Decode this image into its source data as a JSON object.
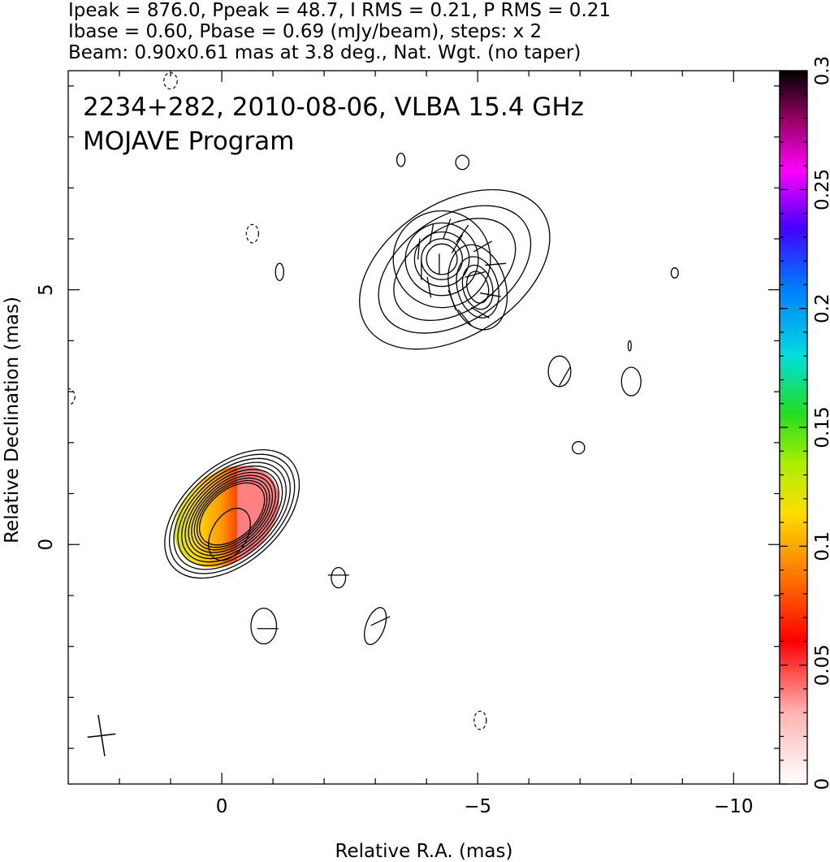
{
  "header": {
    "line1": "Ipeak = 876.0, Ppeak = 48.7, I RMS = 0.21, P RMS = 0.21",
    "line2": "Ibase = 0.60, Pbase = 0.69 (mJy/beam), steps: x 2",
    "line3": "Beam: 0.90x0.61 mas at 3.8 deg., Nat. Wgt. (no taper)"
  },
  "chart_data": {
    "type": "heatmap",
    "title": "2234+282, 2010-08-06, VLBA 15.4 GHz",
    "subtitle": "MOJAVE Program",
    "xlabel": "Relative R.A. (mas)",
    "ylabel": "Relative Declination (mas)",
    "xlim": [
      3.0,
      -10.9
    ],
    "ylim": [
      -4.7,
      9.3
    ],
    "x_ticks": [
      {
        "value": 0,
        "label": "0"
      },
      {
        "value": -5,
        "label": "−5"
      },
      {
        "value": -10,
        "label": "−10"
      }
    ],
    "y_ticks": [
      {
        "value": 0,
        "label": "0"
      },
      {
        "value": 5,
        "label": "5"
      }
    ],
    "colorbar": {
      "range": [
        0,
        0.3
      ],
      "ticks": [
        {
          "value": 0,
          "label": "0"
        },
        {
          "value": 0.05,
          "label": "0.05"
        },
        {
          "value": 0.1,
          "label": "0.1"
        },
        {
          "value": 0.15,
          "label": "0.15"
        },
        {
          "value": 0.2,
          "label": "0.2"
        },
        {
          "value": 0.25,
          "label": "0.25"
        },
        {
          "value": 0.3,
          "label": "0.3"
        }
      ]
    },
    "contours": [
      {
        "cx": -0.2,
        "cy": 0.6,
        "base_rx": 1.55,
        "base_ry": 0.95,
        "angle": -42,
        "levels": 11,
        "shrink": 0.93
      },
      {
        "cx": -0.15,
        "cy": 0.2,
        "base_rx": 0.55,
        "base_ry": 0.35,
        "angle": -60,
        "levels": 1,
        "shrink": 1
      },
      {
        "cx": -4.55,
        "cy": 5.4,
        "base_rx": 2.05,
        "base_ry": 1.3,
        "angle": -33,
        "levels": 3,
        "shrink": 0.8
      },
      {
        "cx": -4.3,
        "cy": 5.6,
        "base_rx": 0.95,
        "base_ry": 0.95,
        "angle": 0,
        "levels": 5,
        "shrink": 0.75
      },
      {
        "cx": -5.0,
        "cy": 5.05,
        "base_rx": 0.55,
        "base_ry": 0.85,
        "angle": -15,
        "levels": 4,
        "shrink": 0.72
      },
      {
        "cx": -0.82,
        "cy": -1.6,
        "base_rx": 0.25,
        "base_ry": 0.35,
        "angle": 0,
        "levels": 1,
        "shrink": 1
      },
      {
        "cx": -2.28,
        "cy": -0.65,
        "base_rx": 0.14,
        "base_ry": 0.2,
        "angle": 0,
        "levels": 1,
        "shrink": 1
      },
      {
        "cx": -3.0,
        "cy": -1.6,
        "base_rx": 0.18,
        "base_ry": 0.38,
        "angle": 20,
        "levels": 1,
        "shrink": 1
      },
      {
        "cx": -6.6,
        "cy": 3.4,
        "base_rx": 0.22,
        "base_ry": 0.3,
        "angle": 0,
        "levels": 1,
        "shrink": 1
      },
      {
        "cx": -8.0,
        "cy": 3.2,
        "base_rx": 0.19,
        "base_ry": 0.28,
        "angle": 0,
        "levels": 1,
        "shrink": 1
      },
      {
        "cx": -6.97,
        "cy": 1.9,
        "base_rx": 0.12,
        "base_ry": 0.12,
        "angle": 0,
        "levels": 1,
        "shrink": 1
      },
      {
        "cx": -4.7,
        "cy": 7.5,
        "base_rx": 0.13,
        "base_ry": 0.14,
        "angle": 0,
        "levels": 1,
        "shrink": 1
      },
      {
        "cx": -3.5,
        "cy": 7.55,
        "base_rx": 0.08,
        "base_ry": 0.13,
        "angle": 0,
        "levels": 1,
        "shrink": 1
      },
      {
        "cx": -1.13,
        "cy": 5.35,
        "base_rx": 0.08,
        "base_ry": 0.17,
        "angle": 0,
        "levels": 1,
        "shrink": 1
      },
      {
        "cx": -8.85,
        "cy": 5.33,
        "base_rx": 0.07,
        "base_ry": 0.1,
        "angle": 0,
        "levels": 1,
        "shrink": 1
      },
      {
        "cx": -7.97,
        "cy": 3.9,
        "base_rx": 0.03,
        "base_ry": 0.1,
        "angle": 0,
        "levels": 1,
        "shrink": 1
      }
    ],
    "dashed_contours": [
      {
        "cx": -0.6,
        "cy": 6.1,
        "rx": 0.12,
        "ry": 0.18
      },
      {
        "cx": -5.05,
        "cy": -3.45,
        "rx": 0.12,
        "ry": 0.18
      },
      {
        "cx": 1.0,
        "cy": 9.1,
        "rx": 0.13,
        "ry": 0.16
      },
      {
        "cx": 3.0,
        "cy": 2.9,
        "rx": 0.13,
        "ry": 0.16
      }
    ],
    "pol_region": {
      "cx": -0.1,
      "cy": 0.55,
      "rx": 1.15,
      "ry": 0.85,
      "angle": -42,
      "split_x": -0.3,
      "fill_left": [
        {
          "offset": 0,
          "color": "#33cc33"
        },
        {
          "offset": 0.35,
          "color": "#ccee00"
        },
        {
          "offset": 0.6,
          "color": "#ffdd00"
        },
        {
          "offset": 0.85,
          "color": "#ff9900"
        },
        {
          "offset": 1,
          "color": "#ff4400"
        }
      ],
      "fill_right": "#ff8080"
    },
    "evpa_vectors": [
      {
        "x": -4.1,
        "y": 6.1,
        "ang": 10
      },
      {
        "x": -3.85,
        "y": 5.8,
        "ang": 5
      },
      {
        "x": -3.9,
        "y": 5.4,
        "ang": 0
      },
      {
        "x": -4.05,
        "y": 5.05,
        "ang": 170
      },
      {
        "x": -4.4,
        "y": 6.2,
        "ang": 20
      },
      {
        "x": -4.7,
        "y": 6.1,
        "ang": 35
      },
      {
        "x": -5.1,
        "y": 5.85,
        "ang": 60
      },
      {
        "x": -5.35,
        "y": 5.5,
        "ang": 85
      },
      {
        "x": -5.25,
        "y": 4.9,
        "ang": 100
      },
      {
        "x": -5.05,
        "y": 4.55,
        "ang": 120
      },
      {
        "x": -4.75,
        "y": 4.45,
        "ang": 140
      },
      {
        "x": -4.5,
        "y": 4.8,
        "ang": 160
      },
      {
        "x": -4.25,
        "y": 5.5,
        "ang": 0
      },
      {
        "x": -4.95,
        "y": 5.3,
        "ang": 75
      },
      {
        "x": -4.6,
        "y": 5.9,
        "ang": 30
      },
      {
        "x": -6.7,
        "y": 3.3,
        "ang": 30
      },
      {
        "x": -3.1,
        "y": -1.5,
        "ang": 65
      },
      {
        "x": -0.9,
        "y": -1.65,
        "ang": 90
      },
      {
        "x": -2.28,
        "y": -0.6,
        "ang": 90
      }
    ],
    "beam": {
      "x": 2.35,
      "y": -3.75,
      "major": 0.9,
      "minor": 0.61,
      "pa": 3.8
    }
  }
}
